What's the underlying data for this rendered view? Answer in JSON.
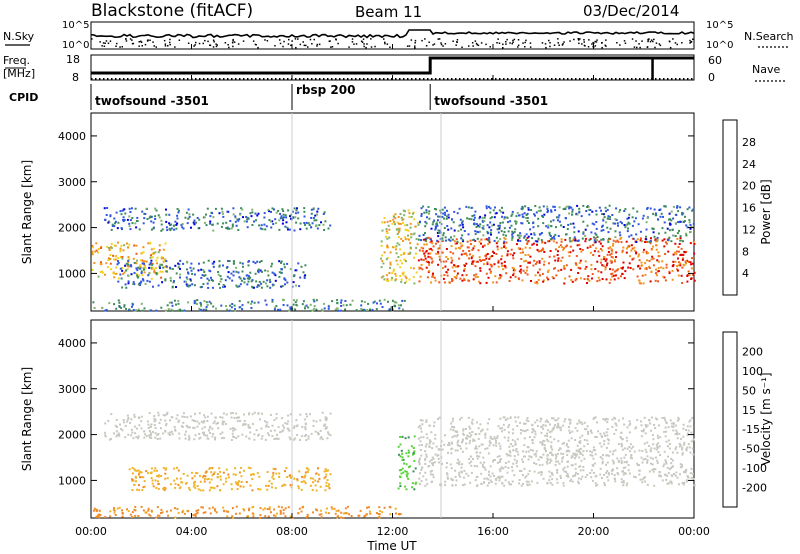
{
  "header": {
    "station": "Blackstone (fitACF)",
    "beam": "Beam 11",
    "date": "03/Dec/2014"
  },
  "summary_panels": {
    "nsky_label": "N.Sky",
    "nsky_ticks": [
      "10^5",
      "10^0"
    ],
    "nsearch_label": "N.Search",
    "nsearch_ticks": [
      "10^5",
      "10^0"
    ],
    "freq_label": "Freq.",
    "freq_unit": "[MHz]",
    "freq_ticks": [
      "18",
      "8"
    ],
    "nave_label": "Nave",
    "nave_ticks": [
      "60",
      "0"
    ],
    "cpid_label": "CPID",
    "cpid_segments": [
      {
        "name": "twofsound -3501",
        "start_hour": 0.0,
        "end_hour": 8.0
      },
      {
        "name": "rbsp 200",
        "start_hour": 8.0,
        "end_hour": 13.5
      },
      {
        "name": "twofsound -3501",
        "start_hour": 13.5,
        "end_hour": 24.0
      }
    ]
  },
  "x_axis": {
    "label": "Time UT",
    "ticks": [
      "00:00",
      "04:00",
      "08:00",
      "12:00",
      "16:00",
      "20:00",
      "00:00"
    ],
    "range_hours": [
      0,
      24
    ]
  },
  "power_panel": {
    "ylabel": "Slant Range [km]",
    "yticks": [
      "1000",
      "2000",
      "3000",
      "4000"
    ],
    "colorbar_label": "Power [dB]",
    "colorbar_ticks": [
      "4",
      "8",
      "12",
      "16",
      "20",
      "24",
      "28"
    ],
    "colors": [
      "#0000d8",
      "#2f56e0",
      "#3c8c5a",
      "#7fb46e",
      "#f0d21e",
      "#f0961e",
      "#f05a1e",
      "#e10000"
    ]
  },
  "velocity_panel": {
    "ylabel": "Slant Range [km]",
    "yticks": [
      "1000",
      "2000",
      "3000",
      "4000"
    ],
    "colorbar_label": "Velocity [m s⁻¹]",
    "colorbar_ticks": [
      "200",
      "100",
      "50",
      "15",
      "-15",
      "-50",
      "-100",
      "-200"
    ],
    "colors": [
      "#1e28a0",
      "#3c64c8",
      "#3c8c5a",
      "#5ad23c",
      "#c8c8c0",
      "#f0b428",
      "#f08c28",
      "#f05a1e",
      "#e10000"
    ]
  },
  "chart_data": {
    "type": "heatmap",
    "title": "Blackstone (fitACF)",
    "xlabel": "Time UT",
    "ylabel": "Slant Range [km]",
    "xlim": [
      0,
      24
    ],
    "ylim": [
      180,
      4500
    ],
    "power_bands": [
      {
        "start_hour": 0.0,
        "end_hour": 3.0,
        "range_km": [
          900,
          1700
        ],
        "power_db": 20
      },
      {
        "start_hour": 0.5,
        "end_hour": 9.5,
        "range_km": [
          1950,
          2450
        ],
        "power_db": 8
      },
      {
        "start_hour": 1.0,
        "end_hour": 8.5,
        "range_km": [
          700,
          1300
        ],
        "power_db": 8
      },
      {
        "start_hour": 0.0,
        "end_hour": 12.5,
        "range_km": [
          200,
          450
        ],
        "power_db": 10
      },
      {
        "start_hour": 11.5,
        "end_hour": 13.0,
        "range_km": [
          800,
          2400
        ],
        "power_db": 18
      },
      {
        "start_hour": 13.0,
        "end_hour": 24.0,
        "range_km": [
          800,
          1800
        ],
        "power_db": 26
      },
      {
        "start_hour": 13.0,
        "end_hour": 24.0,
        "range_km": [
          1700,
          2500
        ],
        "power_db": 8
      }
    ],
    "velocity_bands": [
      {
        "start_hour": 0.5,
        "end_hour": 9.5,
        "range_km": [
          1900,
          2500
        ],
        "velocity_ms": 0
      },
      {
        "start_hour": 1.5,
        "end_hour": 9.5,
        "range_km": [
          800,
          1300
        ],
        "velocity_ms": -40
      },
      {
        "start_hour": 0.0,
        "end_hour": 12.5,
        "range_km": [
          200,
          450
        ],
        "velocity_ms": -60
      },
      {
        "start_hour": 12.2,
        "end_hour": 12.9,
        "range_km": [
          800,
          2000
        ],
        "velocity_ms": 40
      },
      {
        "start_hour": 13.0,
        "end_hour": 24.0,
        "range_km": [
          900,
          2400
        ],
        "velocity_ms": 0
      }
    ]
  }
}
